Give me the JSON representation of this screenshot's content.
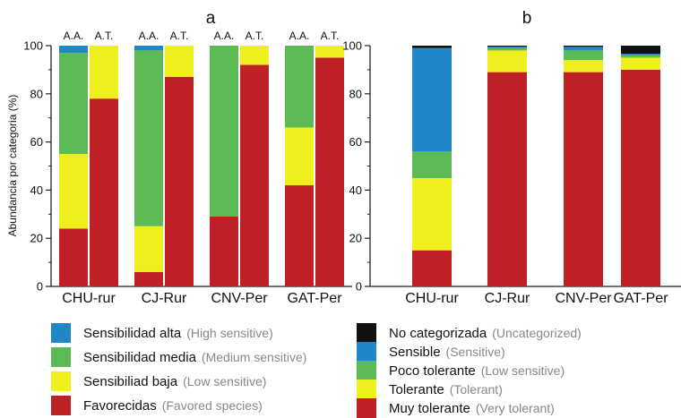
{
  "colors": {
    "uncategorized": "#111111",
    "high": "#1f86c8",
    "medium": "#5cbb55",
    "low": "#f0ef1e",
    "favored": "#bf2026"
  },
  "chart_data": [
    {
      "type": "bar",
      "stacked": true,
      "title": "a",
      "ylabel": "Abundancia por categoria (%)",
      "xlabel": "",
      "ylim": [
        0,
        100
      ],
      "yticks": [
        0,
        20,
        40,
        60,
        80,
        100
      ],
      "categories": [
        "CHU-rur",
        "CJ-Rur",
        "CNV-Per",
        "GAT-Per"
      ],
      "subcategories": [
        "A.A.",
        "A.T."
      ],
      "series": [
        {
          "key": "favored",
          "values": [
            [
              24,
              78
            ],
            [
              6,
              87
            ],
            [
              29,
              92
            ],
            [
              42,
              95
            ]
          ]
        },
        {
          "key": "low",
          "values": [
            [
              31,
              22
            ],
            [
              19,
              13
            ],
            [
              0,
              8
            ],
            [
              24,
              5
            ]
          ]
        },
        {
          "key": "medium",
          "values": [
            [
              42,
              0
            ],
            [
              73,
              0
            ],
            [
              71,
              0
            ],
            [
              34,
              0
            ]
          ]
        },
        {
          "key": "high",
          "values": [
            [
              3,
              0
            ],
            [
              2,
              0
            ],
            [
              0,
              0
            ],
            [
              0,
              0
            ]
          ]
        }
      ]
    },
    {
      "type": "bar",
      "stacked": true,
      "title": "b",
      "xlabel": "",
      "ylabel": "",
      "ylim": [
        0,
        100
      ],
      "yticks": [
        0,
        20,
        40,
        60,
        80,
        100
      ],
      "categories": [
        "CHU-rur",
        "CJ-Rur",
        "CNV-Per",
        "GAT-Per"
      ],
      "series": [
        {
          "key": "favored",
          "values": [
            15,
            89,
            89,
            90
          ]
        },
        {
          "key": "low",
          "values": [
            30,
            9,
            5,
            5
          ]
        },
        {
          "key": "medium",
          "values": [
            11,
            1,
            4,
            1
          ]
        },
        {
          "key": "high",
          "values": [
            43,
            0.6,
            1.5,
            0.6
          ]
        },
        {
          "key": "uncategorized",
          "values": [
            1,
            0.4,
            0.5,
            3.4
          ]
        }
      ]
    }
  ],
  "legend_a": [
    {
      "color_key": "high",
      "label": "Sensibilidad alta",
      "translation": "(High sensitive)"
    },
    {
      "color_key": "medium",
      "label": "Sensibilidad media",
      "translation": "(Medium sensitive)"
    },
    {
      "color_key": "low",
      "label": "Sensibiliad baja",
      "translation": "(Low sensitive)"
    },
    {
      "color_key": "favored",
      "label": "Favorecidas",
      "translation": "(Favored species)"
    }
  ],
  "legend_b": [
    {
      "color_key": "uncategorized",
      "label": "No categorizada",
      "translation": "(Uncategorized)"
    },
    {
      "color_key": "high",
      "label": "Sensible",
      "translation": "(Sensitive)"
    },
    {
      "color_key": "medium",
      "label": "Poco tolerante",
      "translation": "(Low sensitive)"
    },
    {
      "color_key": "low",
      "label": "Tolerante",
      "translation": "(Tolerant)"
    },
    {
      "color_key": "favored",
      "label": "Muy tolerante",
      "translation": "(Very tolerant)"
    }
  ]
}
